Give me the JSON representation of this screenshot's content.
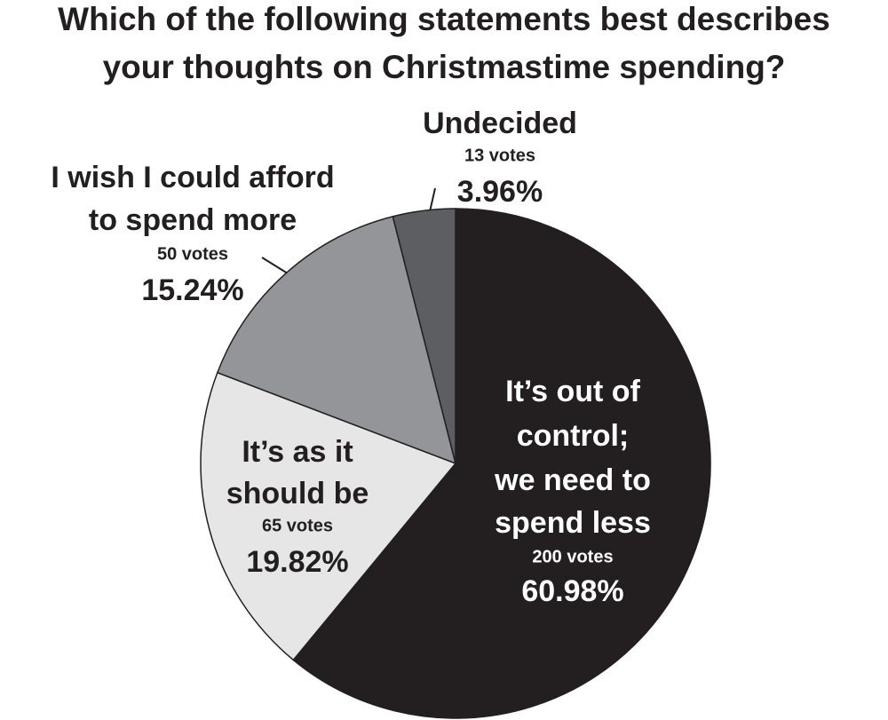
{
  "chart_data": {
    "type": "pie",
    "title": [
      "Which of the following statements best describes",
      "your thoughts on Christmastime spending?"
    ],
    "categories": [
      [
        "It’s out of",
        "control;",
        "we need to",
        "spend less"
      ],
      [
        "It’s as it",
        "should be"
      ],
      [
        "I wish I could afford",
        "to spend more"
      ],
      [
        "Undecided"
      ]
    ],
    "values": [
      60.98,
      19.82,
      15.24,
      3.96
    ],
    "value_labels": [
      "60.98%",
      "19.82%",
      "15.24%",
      "3.96%"
    ],
    "vote_labels": [
      "200 votes",
      "65 votes",
      "50 votes",
      "13 votes"
    ],
    "colors": [
      "#231f20",
      "#e6e6e6",
      "#939598",
      "#5d5e61"
    ],
    "start_angle": 0,
    "direction": "clockwise"
  }
}
